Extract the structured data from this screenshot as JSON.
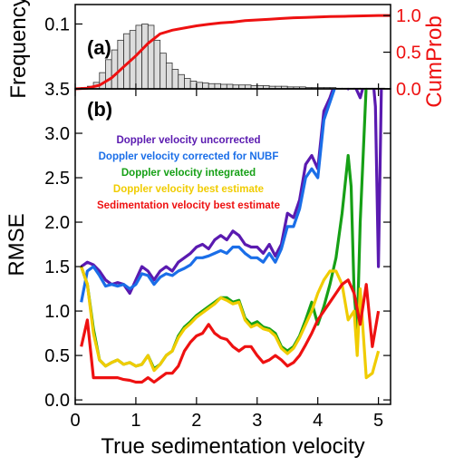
{
  "chart_data": [
    {
      "panel": "(a)",
      "type": "bar",
      "title": "",
      "xlabel": "",
      "ylabel": "Frequency",
      "y2label": "CumProb",
      "xlim": [
        0,
        5.2
      ],
      "ylim": [
        0,
        0.13
      ],
      "y2lim": [
        0,
        1.15
      ],
      "yticks": [
        {
          "v": 0.1,
          "label": "0.1"
        }
      ],
      "y2ticks": [
        {
          "v": 0.0,
          "label": "0.0"
        },
        {
          "v": 0.5,
          "label": "0.5"
        },
        {
          "v": 1.0,
          "label": "1.0"
        }
      ],
      "histogram": {
        "bin_width": 0.1,
        "x": [
          0.05,
          0.15,
          0.25,
          0.35,
          0.45,
          0.55,
          0.65,
          0.75,
          0.85,
          0.95,
          1.05,
          1.15,
          1.25,
          1.35,
          1.45,
          1.55,
          1.65,
          1.75,
          1.85,
          1.95,
          2.05,
          2.15,
          2.25,
          2.35,
          2.45,
          2.55,
          2.65,
          2.75,
          2.85,
          2.95,
          3.05,
          3.15,
          3.25,
          3.35,
          3.45,
          3.55,
          3.65,
          3.75,
          3.85,
          3.95,
          4.05,
          4.15,
          4.25,
          4.35,
          4.45,
          4.55,
          4.65,
          4.75,
          4.85,
          4.95,
          5.05
        ],
        "values": [
          0.001,
          0.002,
          0.004,
          0.01,
          0.025,
          0.045,
          0.06,
          0.075,
          0.085,
          0.09,
          0.098,
          0.1,
          0.098,
          0.075,
          0.055,
          0.04,
          0.03,
          0.022,
          0.016,
          0.012,
          0.01,
          0.009,
          0.008,
          0.008,
          0.007,
          0.007,
          0.006,
          0.006,
          0.006,
          0.005,
          0.005,
          0.005,
          0.004,
          0.004,
          0.004,
          0.003,
          0.003,
          0.003,
          0.002,
          0.002,
          0.002,
          0.002,
          0.002,
          0.001,
          0.001,
          0.001,
          0.001,
          0.001,
          0.001,
          0.001,
          0.001
        ]
      },
      "cumulative": {
        "color": "#ee1111",
        "x": [
          0.0,
          0.2,
          0.4,
          0.6,
          0.8,
          1.0,
          1.2,
          1.4,
          1.6,
          1.8,
          2.0,
          2.2,
          2.4,
          2.6,
          2.8,
          3.0,
          3.2,
          3.4,
          3.6,
          3.8,
          4.0,
          4.2,
          4.5,
          5.0,
          5.2
        ],
        "y": [
          0.0,
          0.01,
          0.05,
          0.15,
          0.3,
          0.45,
          0.62,
          0.75,
          0.8,
          0.83,
          0.86,
          0.88,
          0.9,
          0.91,
          0.93,
          0.94,
          0.95,
          0.96,
          0.97,
          0.975,
          0.98,
          0.985,
          0.99,
          1.0,
          1.0
        ]
      }
    },
    {
      "panel": "(b)",
      "type": "line",
      "title": "",
      "xlabel": "True sedimentation velocity",
      "ylabel": "RMSE",
      "xlim": [
        0,
        5.2
      ],
      "ylim": [
        -0.05,
        3.5
      ],
      "xticks": [
        0,
        1,
        2,
        3,
        4,
        5
      ],
      "yticks": [
        0.0,
        0.5,
        1.0,
        1.5,
        2.0,
        2.5,
        3.0,
        3.5
      ],
      "grid": false,
      "legend_position": "top-left (text labels)",
      "series": [
        {
          "name": "Doppler velocity uncorrected",
          "color": "#5a1ab0",
          "x": [
            0.1,
            0.2,
            0.3,
            0.4,
            0.5,
            0.6,
            0.7,
            0.8,
            0.9,
            1.0,
            1.1,
            1.2,
            1.3,
            1.4,
            1.5,
            1.6,
            1.7,
            1.8,
            1.9,
            2.0,
            2.1,
            2.2,
            2.3,
            2.4,
            2.5,
            2.6,
            2.7,
            2.8,
            2.9,
            3.0,
            3.1,
            3.2,
            3.3,
            3.4,
            3.5,
            3.6,
            3.7,
            3.8,
            3.9,
            4.0,
            4.1,
            4.2,
            4.3,
            4.4,
            4.5,
            4.6,
            4.7,
            4.8,
            4.9,
            4.95,
            5.0,
            5.05
          ],
          "y": [
            1.5,
            1.55,
            1.52,
            1.45,
            1.35,
            1.3,
            1.32,
            1.3,
            1.2,
            1.35,
            1.5,
            1.45,
            1.35,
            1.45,
            1.5,
            1.45,
            1.55,
            1.6,
            1.65,
            1.72,
            1.75,
            1.7,
            1.8,
            1.85,
            1.8,
            1.9,
            1.85,
            1.75,
            1.72,
            1.72,
            1.65,
            1.75,
            1.62,
            1.75,
            2.1,
            2.05,
            2.25,
            2.65,
            2.75,
            2.6,
            3.25,
            3.4,
            3.6,
            3.65,
            3.5,
            3.55,
            3.4,
            3.65,
            3.7,
            3.3,
            1.5,
            3.6
          ]
        },
        {
          "name": "Doppler velocity corrected for NUBF",
          "color": "#1a6ee8",
          "x": [
            0.1,
            0.2,
            0.3,
            0.4,
            0.5,
            0.6,
            0.7,
            0.8,
            0.9,
            1.0,
            1.1,
            1.2,
            1.3,
            1.4,
            1.5,
            1.6,
            1.7,
            1.8,
            1.9,
            2.0,
            2.1,
            2.2,
            2.3,
            2.4,
            2.5,
            2.6,
            2.7,
            2.8,
            2.9,
            3.0,
            3.1,
            3.2,
            3.3,
            3.4,
            3.5,
            3.6,
            3.7,
            3.8,
            3.9,
            4.0,
            4.1,
            4.2,
            4.3
          ],
          "y": [
            1.1,
            1.45,
            1.5,
            1.4,
            1.28,
            1.3,
            1.28,
            1.3,
            1.25,
            1.3,
            1.42,
            1.4,
            1.3,
            1.38,
            1.42,
            1.4,
            1.45,
            1.48,
            1.52,
            1.6,
            1.6,
            1.62,
            1.65,
            1.68,
            1.65,
            1.72,
            1.72,
            1.65,
            1.6,
            1.6,
            1.55,
            1.65,
            1.55,
            1.7,
            1.95,
            1.95,
            2.15,
            2.5,
            2.6,
            2.5,
            3.15,
            3.35,
            3.55
          ]
        },
        {
          "name": "Doppler velocity integrated",
          "color": "#16a016",
          "x": [
            0.1,
            0.2,
            0.3,
            0.4,
            0.5,
            0.6,
            0.7,
            0.8,
            0.9,
            1.0,
            1.1,
            1.2,
            1.3,
            1.4,
            1.5,
            1.6,
            1.7,
            1.8,
            1.9,
            2.0,
            2.1,
            2.2,
            2.3,
            2.4,
            2.5,
            2.6,
            2.7,
            2.8,
            2.9,
            3.0,
            3.1,
            3.2,
            3.3,
            3.4,
            3.5,
            3.6,
            3.7,
            3.8,
            3.9,
            4.0,
            4.1,
            4.2,
            4.3,
            4.4,
            4.5,
            4.55,
            4.6,
            4.65,
            4.7,
            4.8
          ],
          "y": [
            1.5,
            1.3,
            0.8,
            0.45,
            0.38,
            0.42,
            0.45,
            0.4,
            0.42,
            0.38,
            0.4,
            0.5,
            0.35,
            0.4,
            0.5,
            0.55,
            0.72,
            0.82,
            0.88,
            0.95,
            1.0,
            1.05,
            1.1,
            1.15,
            1.15,
            1.1,
            1.12,
            0.92,
            0.85,
            0.88,
            0.82,
            0.8,
            0.75,
            0.6,
            0.55,
            0.6,
            0.72,
            0.9,
            1.1,
            0.85,
            1.05,
            1.3,
            1.6,
            2.1,
            2.75,
            2.4,
            1.2,
            0.8,
            2.0,
            3.55
          ]
        },
        {
          "name": "Doppler velocity best estimate",
          "color": "#f0cc00",
          "x": [
            0.1,
            0.2,
            0.3,
            0.4,
            0.5,
            0.6,
            0.7,
            0.8,
            0.9,
            1.0,
            1.1,
            1.2,
            1.3,
            1.4,
            1.5,
            1.6,
            1.7,
            1.8,
            1.9,
            2.0,
            2.1,
            2.2,
            2.3,
            2.4,
            2.5,
            2.6,
            2.7,
            2.8,
            2.9,
            3.0,
            3.1,
            3.2,
            3.3,
            3.4,
            3.5,
            3.6,
            3.7,
            3.8,
            3.9,
            4.0,
            4.1,
            4.2,
            4.3,
            4.4,
            4.5,
            4.6,
            4.65,
            4.7,
            4.8,
            4.9,
            5.0
          ],
          "y": [
            1.5,
            1.3,
            0.75,
            0.45,
            0.38,
            0.42,
            0.45,
            0.4,
            0.42,
            0.38,
            0.4,
            0.5,
            0.33,
            0.4,
            0.5,
            0.55,
            0.7,
            0.8,
            0.86,
            0.93,
            0.98,
            1.03,
            1.08,
            1.15,
            1.12,
            1.08,
            1.1,
            0.9,
            0.82,
            0.85,
            0.8,
            0.78,
            0.72,
            0.58,
            0.52,
            0.58,
            0.7,
            0.85,
            1.0,
            1.2,
            1.35,
            1.45,
            1.45,
            1.3,
            0.9,
            1.0,
            0.5,
            1.25,
            0.25,
            0.3,
            0.55
          ]
        },
        {
          "name": "Sedimentation velocity best estimate",
          "color": "#ee1111",
          "x": [
            0.1,
            0.2,
            0.3,
            0.4,
            0.5,
            0.6,
            0.7,
            0.8,
            0.9,
            1.0,
            1.1,
            1.2,
            1.3,
            1.4,
            1.5,
            1.6,
            1.7,
            1.8,
            1.9,
            2.0,
            2.1,
            2.2,
            2.3,
            2.4,
            2.5,
            2.6,
            2.7,
            2.8,
            2.9,
            3.0,
            3.1,
            3.2,
            3.3,
            3.4,
            3.5,
            3.6,
            3.7,
            3.8,
            3.9,
            4.0,
            4.1,
            4.2,
            4.3,
            4.4,
            4.5,
            4.6,
            4.7,
            4.8,
            4.9,
            5.0
          ],
          "y": [
            0.6,
            0.9,
            0.25,
            0.25,
            0.25,
            0.25,
            0.25,
            0.23,
            0.22,
            0.2,
            0.2,
            0.25,
            0.2,
            0.25,
            0.3,
            0.3,
            0.38,
            0.55,
            0.65,
            0.72,
            0.75,
            0.85,
            0.75,
            0.7,
            0.68,
            0.6,
            0.55,
            0.6,
            0.6,
            0.5,
            0.42,
            0.45,
            0.5,
            0.45,
            0.38,
            0.42,
            0.5,
            0.62,
            0.75,
            0.9,
            1.0,
            1.1,
            1.2,
            1.3,
            1.35,
            1.2,
            0.85,
            1.3,
            0.6,
            1.0
          ]
        }
      ]
    }
  ],
  "labels": {
    "panel_a": "(a)",
    "panel_b": "(b)"
  },
  "colors": {
    "axis": "#000000",
    "histogram_fill": "#dddddd",
    "histogram_edge": "#333333",
    "cumprob": "#ee1111"
  }
}
